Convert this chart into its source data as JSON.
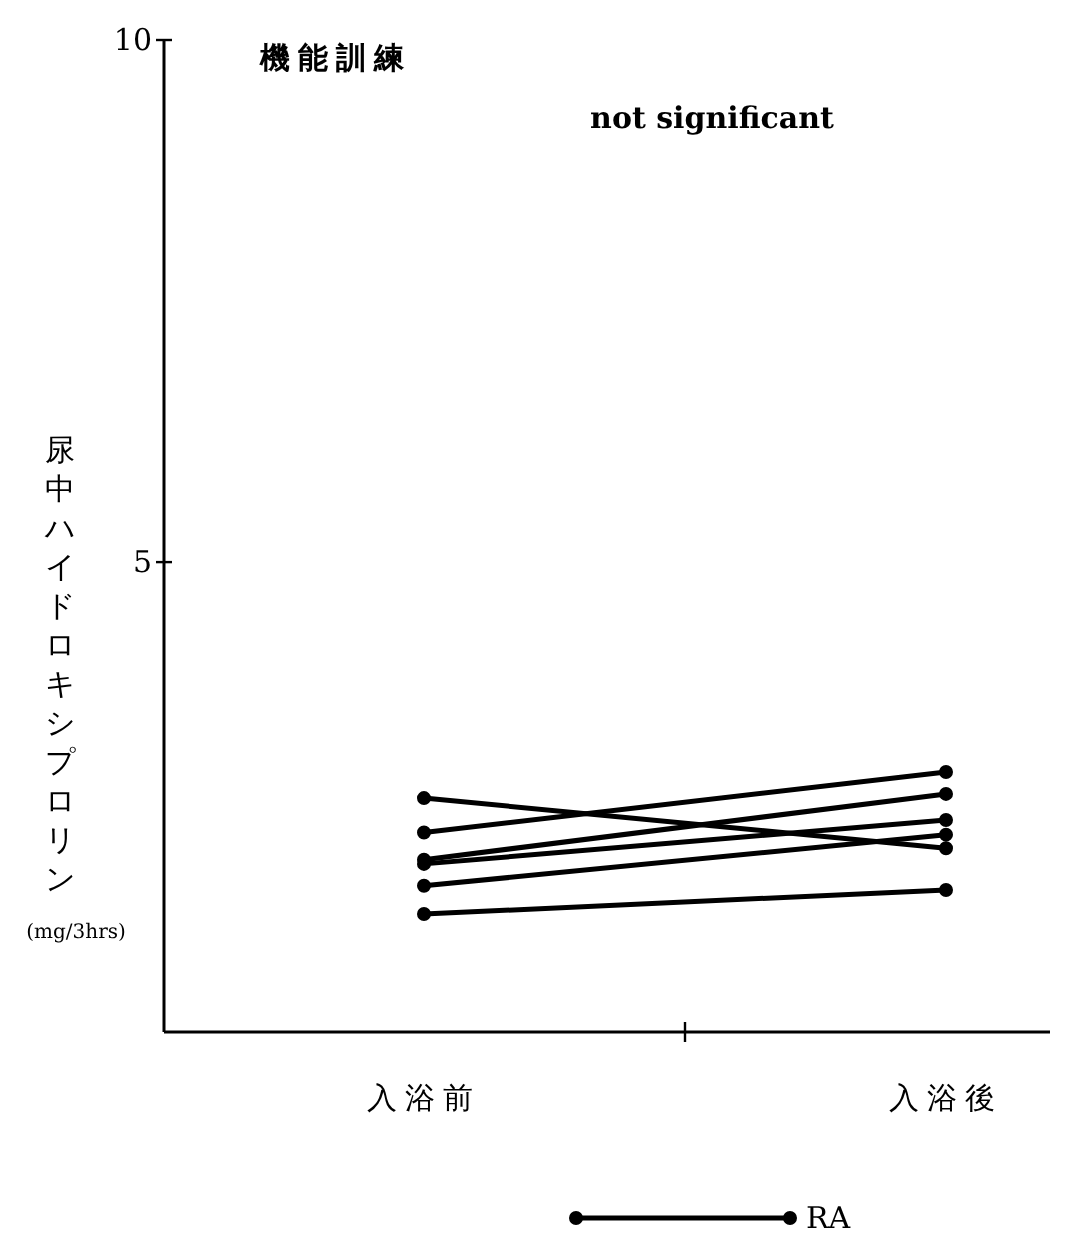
{
  "chart_data": {
    "type": "line",
    "title": "機能訓練",
    "ylabel": "尿中ハイドロキシプロリン (mg/3hrs)",
    "annotations": [
      "not significant"
    ],
    "categories": [
      "入浴前",
      "入浴後"
    ],
    "ylim": [
      0.5,
      10
    ],
    "yticks": [
      5,
      10
    ],
    "grid": false,
    "marker": "circle",
    "legend": "bottom",
    "series": [
      {
        "name": "RA",
        "color": "#000000",
        "values": [
          2.74,
          2.26
        ]
      },
      {
        "color": "#000000",
        "values": [
          2.41,
          2.99
        ]
      },
      {
        "color": "#000000",
        "values": [
          2.15,
          2.78
        ]
      },
      {
        "color": "#000000",
        "values": [
          2.11,
          2.53
        ]
      },
      {
        "color": "#000000",
        "values": [
          1.9,
          2.39
        ]
      },
      {
        "color": "#000000",
        "values": [
          1.63,
          1.86
        ]
      }
    ]
  }
}
